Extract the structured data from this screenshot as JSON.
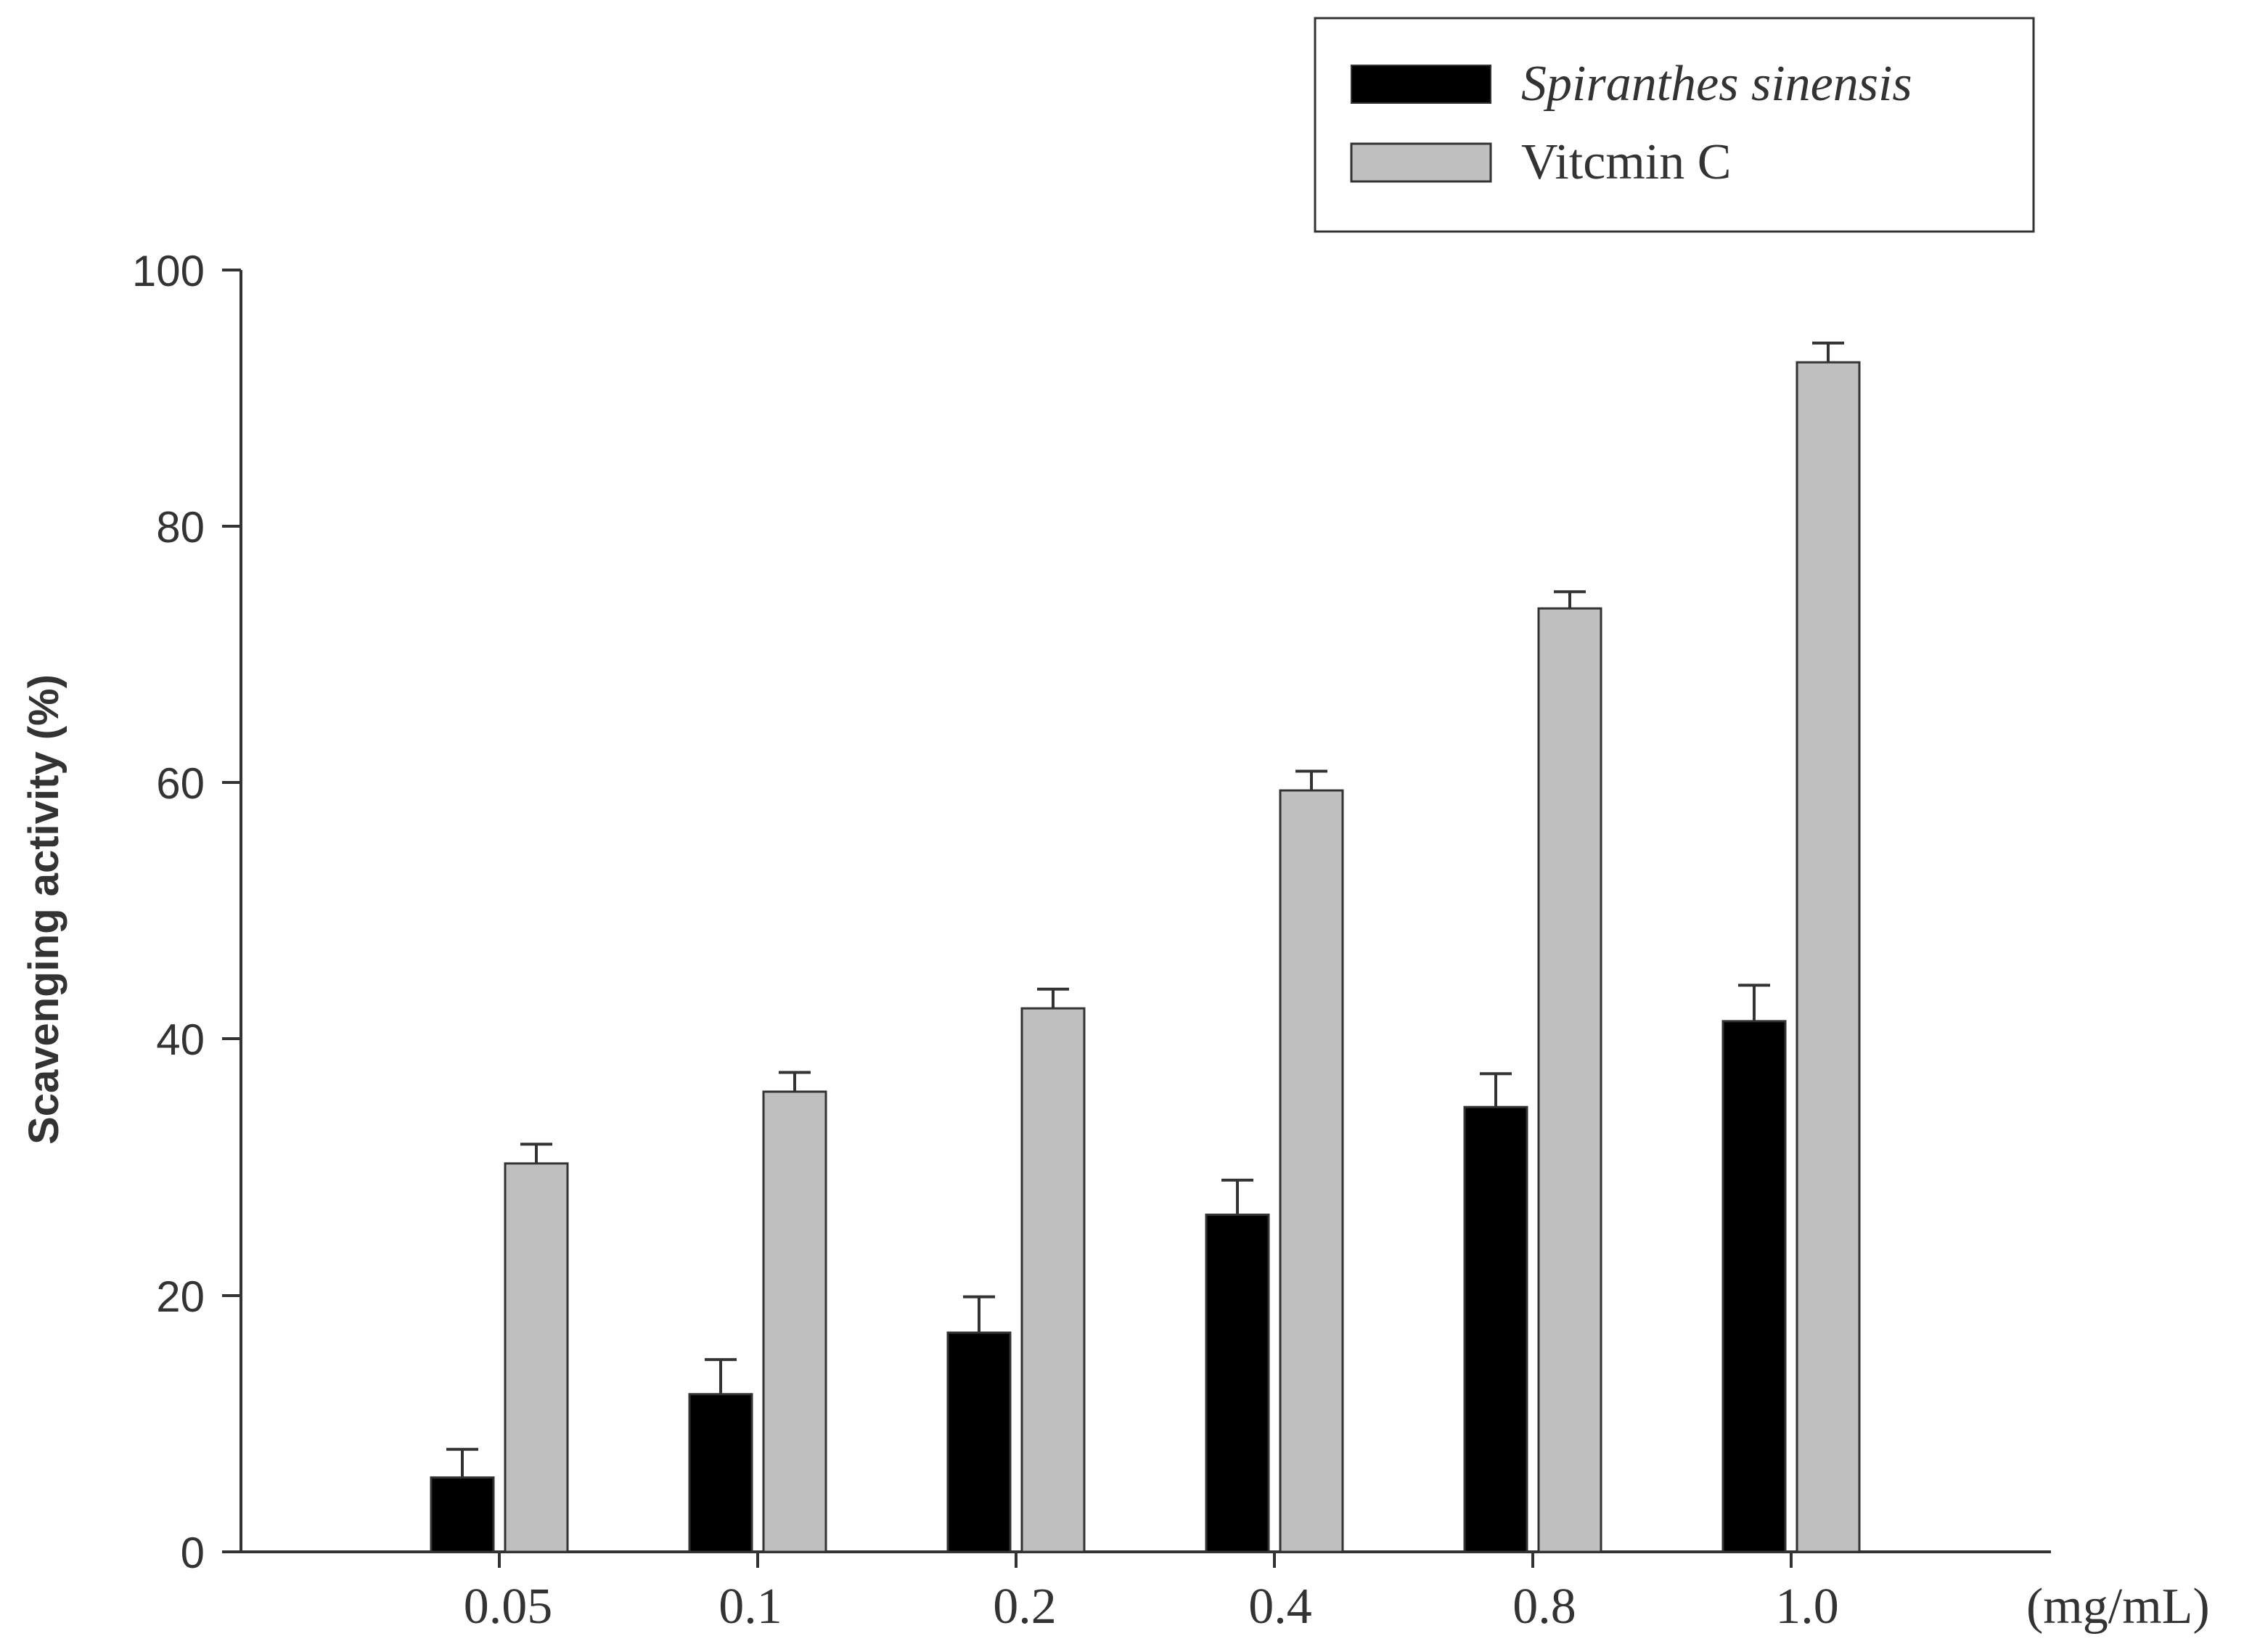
{
  "chart_data": {
    "type": "bar",
    "categories": [
      "0.05",
      "0.1",
      "0.2",
      "0.4",
      "0.8",
      "1.0"
    ],
    "x_unit_label": "(mg/mL)",
    "ylabel": "Scavenging activity (%)",
    "ylim": [
      0,
      100
    ],
    "yticks": [
      "0",
      "20",
      "40",
      "60",
      "80",
      "100"
    ],
    "grid": false,
    "legend_position": "top-right",
    "series": [
      {
        "name": "Spiranthes sinensis",
        "color": "#000000",
        "values": [
          5.8,
          12.3,
          17.1,
          26.3,
          34.7,
          41.4
        ],
        "errors": [
          2.2,
          2.7,
          2.8,
          2.7,
          2.6,
          2.8
        ]
      },
      {
        "name": "Vitcmin C",
        "color": "#bfbfbf",
        "values": [
          30.3,
          35.9,
          42.4,
          59.4,
          73.6,
          92.8
        ],
        "errors": [
          1.5,
          1.5,
          1.5,
          1.5,
          1.3,
          1.5
        ]
      }
    ]
  }
}
